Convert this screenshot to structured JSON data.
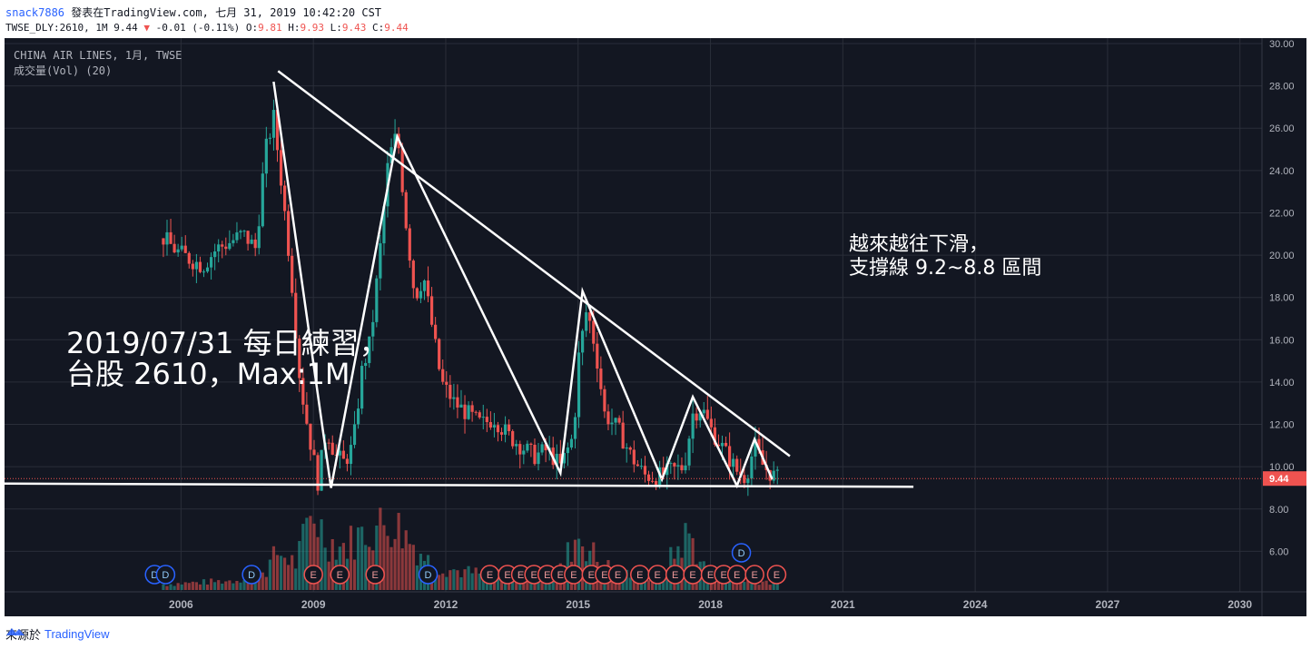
{
  "header": {
    "user": "snack7886",
    "posted": "發表在TradingView.com, 七月 31, 2019 10:42:20 CST",
    "symbol_line_prefix": "TWSE_DLY:2610, 1M 9.44",
    "change": "-0.01 (-0.11%)",
    "o_label": "O:",
    "o_val": "9.81",
    "h_label": "H:",
    "h_val": "9.93",
    "l_label": "L:",
    "l_val": "9.43",
    "c_label": "C:",
    "c_val": "9.44"
  },
  "legend": {
    "symbol": "CHINA AIR LINES, 1月, TWSE",
    "volume": "成交量(Vol) (20)"
  },
  "annotations": {
    "left_line1": "2019/07/31 每日練習，",
    "left_line2": "台股 2610，Max:1M",
    "right_line1": "越來越往下滑，",
    "right_line2": "支撐線 9.2~8.8 區間"
  },
  "last_price_label": "9.44",
  "footer": {
    "source": "來源於",
    "brand": "TradingView"
  },
  "colors": {
    "bg": "#131722",
    "up": "#26a69a",
    "down": "#ef5350",
    "grid": "#2a2e39",
    "line": "#ffffff"
  },
  "chart_data": {
    "type": "candlestick",
    "y_axis_ticks": [
      "30.00",
      "28.00",
      "26.00",
      "24.00",
      "22.00",
      "20.00",
      "18.00",
      "16.00",
      "14.00",
      "12.00",
      "10.00",
      "8.00",
      "6.00"
    ],
    "x_axis_ticks": [
      "2006",
      "2009",
      "2012",
      "2015",
      "2018",
      "2021",
      "2024",
      "2027",
      "2030"
    ],
    "ylim": [
      4,
      30
    ],
    "last_price": 9.44,
    "price_path": [
      [
        2005.6,
        20.8
      ],
      [
        2005.9,
        20.2
      ],
      [
        2006.2,
        19.8
      ],
      [
        2006.5,
        19.5
      ],
      [
        2006.8,
        20.3
      ],
      [
        2007.1,
        20.6
      ],
      [
        2007.4,
        21.0
      ],
      [
        2007.7,
        20.3
      ],
      [
        2007.9,
        24.8
      ],
      [
        2008.1,
        26.5
      ],
      [
        2008.3,
        23.0
      ],
      [
        2008.5,
        19.0
      ],
      [
        2008.7,
        14.0
      ],
      [
        2008.9,
        11.5
      ],
      [
        2009.1,
        9.3
      ],
      [
        2009.3,
        11.8
      ],
      [
        2009.5,
        10.5
      ],
      [
        2009.7,
        10.2
      ],
      [
        2009.9,
        11.0
      ],
      [
        2010.1,
        14.5
      ],
      [
        2010.3,
        16.0
      ],
      [
        2010.5,
        20.0
      ],
      [
        2010.7,
        24.5
      ],
      [
        2010.9,
        25.8
      ],
      [
        2011.1,
        21.5
      ],
      [
        2011.3,
        18.0
      ],
      [
        2011.5,
        19.0
      ],
      [
        2011.7,
        16.5
      ],
      [
        2011.9,
        14.0
      ],
      [
        2012.2,
        13.0
      ],
      [
        2012.5,
        12.5
      ],
      [
        2012.8,
        12.0
      ],
      [
        2013.1,
        12.3
      ],
      [
        2013.4,
        11.5
      ],
      [
        2013.7,
        11.0
      ],
      [
        2014.0,
        10.5
      ],
      [
        2014.3,
        10.8
      ],
      [
        2014.6,
        10.0
      ],
      [
        2014.9,
        11.5
      ],
      [
        2015.0,
        15.0
      ],
      [
        2015.2,
        17.5
      ],
      [
        2015.4,
        15.5
      ],
      [
        2015.6,
        12.5
      ],
      [
        2015.9,
        11.8
      ],
      [
        2016.2,
        10.5
      ],
      [
        2016.5,
        9.6
      ],
      [
        2016.8,
        9.5
      ],
      [
        2017.1,
        9.8
      ],
      [
        2017.4,
        10.0
      ],
      [
        2017.6,
        12.5
      ],
      [
        2017.8,
        12.8
      ],
      [
        2018.0,
        11.8
      ],
      [
        2018.3,
        10.8
      ],
      [
        2018.6,
        9.8
      ],
      [
        2018.8,
        9.5
      ],
      [
        2019.0,
        11.0
      ],
      [
        2019.2,
        10.0
      ],
      [
        2019.5,
        9.44
      ]
    ],
    "volume_path": [
      [
        2005.6,
        0.3
      ],
      [
        2006.4,
        0.4
      ],
      [
        2007.2,
        0.5
      ],
      [
        2007.9,
        1.0
      ],
      [
        2008.2,
        2.0
      ],
      [
        2008.6,
        1.4
      ],
      [
        2009.0,
        4.2
      ],
      [
        2009.3,
        2.6
      ],
      [
        2009.7,
        2.3
      ],
      [
        2010.2,
        3.1
      ],
      [
        2010.8,
        3.6
      ],
      [
        2011.2,
        2.6
      ],
      [
        2011.7,
        1.3
      ],
      [
        2012.3,
        1.0
      ],
      [
        2013.0,
        0.8
      ],
      [
        2013.8,
        0.7
      ],
      [
        2014.6,
        1.1
      ],
      [
        2015.0,
        3.0
      ],
      [
        2015.5,
        1.4
      ],
      [
        2016.2,
        0.7
      ],
      [
        2016.8,
        0.6
      ],
      [
        2017.5,
        3.0
      ],
      [
        2017.9,
        1.0
      ],
      [
        2018.5,
        0.6
      ],
      [
        2019.5,
        0.4
      ]
    ],
    "event_markers": [
      {
        "x": 2005.4,
        "t": "D"
      },
      {
        "x": 2005.65,
        "t": "D"
      },
      {
        "x": 2007.6,
        "t": "D"
      },
      {
        "x": 2009.0,
        "t": "E"
      },
      {
        "x": 2009.6,
        "t": "E"
      },
      {
        "x": 2010.4,
        "t": "E"
      },
      {
        "x": 2011.6,
        "t": "D"
      },
      {
        "x": 2013.0,
        "t": "E"
      },
      {
        "x": 2013.4,
        "t": "E"
      },
      {
        "x": 2013.7,
        "t": "E"
      },
      {
        "x": 2014.0,
        "t": "E"
      },
      {
        "x": 2014.3,
        "t": "E"
      },
      {
        "x": 2014.6,
        "t": "E"
      },
      {
        "x": 2014.9,
        "t": "E"
      },
      {
        "x": 2015.3,
        "t": "E"
      },
      {
        "x": 2015.6,
        "t": "E"
      },
      {
        "x": 2015.9,
        "t": "E"
      },
      {
        "x": 2016.4,
        "t": "E"
      },
      {
        "x": 2016.8,
        "t": "E"
      },
      {
        "x": 2017.2,
        "t": "E"
      },
      {
        "x": 2017.6,
        "t": "E"
      },
      {
        "x": 2018.0,
        "t": "E"
      },
      {
        "x": 2018.3,
        "t": "E"
      },
      {
        "x": 2018.6,
        "t": "E"
      },
      {
        "x": 2019.0,
        "t": "E"
      },
      {
        "x": 2019.5,
        "t": "E"
      },
      {
        "x": 2018.7,
        "t": "D"
      }
    ],
    "drawn_lines": [
      {
        "name": "downtrend-line",
        "pts": [
          [
            2008.2,
            28.7
          ],
          [
            2019.8,
            10.5
          ]
        ]
      },
      {
        "name": "support-line",
        "pts": [
          [
            2002.0,
            9.2
          ],
          [
            2022.6,
            9.05
          ]
        ]
      },
      {
        "name": "zigzag-line",
        "pts": [
          [
            2008.1,
            28.2
          ],
          [
            2009.4,
            9.0
          ],
          [
            2010.9,
            25.6
          ],
          [
            2014.6,
            9.7
          ],
          [
            2015.1,
            18.3
          ],
          [
            2016.9,
            9.4
          ],
          [
            2017.6,
            13.3
          ],
          [
            2018.6,
            9.1
          ],
          [
            2019.0,
            11.3
          ],
          [
            2019.4,
            9.4
          ]
        ]
      }
    ]
  }
}
